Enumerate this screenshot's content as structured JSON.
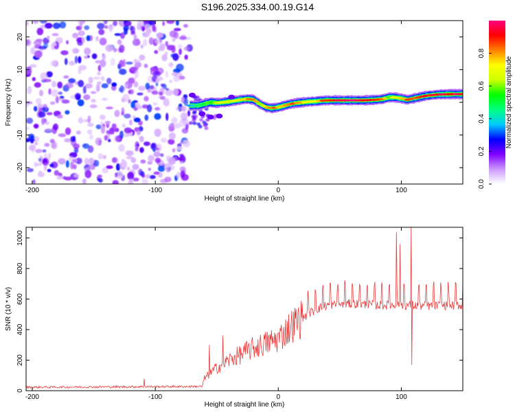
{
  "figure": {
    "title": "S196.2025.334.00.19.G14"
  },
  "chart_data": [
    {
      "type": "heatmap",
      "name": "spectrogram",
      "xlabel": "Height of straight line (km)",
      "ylabel": "Frequency (Hz)",
      "xlim": [
        -205,
        150
      ],
      "ylim": [
        -25,
        25
      ],
      "xticks": [
        -200,
        -100,
        0,
        100
      ],
      "xtick_labels": [
        "-200",
        "-100",
        "0",
        "100"
      ],
      "yticks": [
        -20,
        -10,
        0,
        10,
        20
      ],
      "ytick_labels": [
        "-20",
        "-10",
        "0",
        "10",
        "20"
      ],
      "noise_region_x": [
        -205,
        -72
      ],
      "ridge": {
        "x": [
          -72,
          -65,
          -60,
          -55,
          -50,
          -45,
          -40,
          -35,
          -30,
          -25,
          -20,
          -15,
          -10,
          -5,
          0,
          5,
          10,
          15,
          20,
          25,
          30,
          35,
          40,
          50,
          60,
          70,
          80,
          85,
          90,
          95,
          100,
          105,
          110,
          115,
          120,
          130,
          140,
          150
        ],
        "freq": [
          -1.0,
          -1.0,
          -0.5,
          0.0,
          -0.2,
          0.0,
          0.2,
          0.5,
          0.8,
          1.0,
          0.8,
          -0.5,
          -1.5,
          -1.8,
          -1.5,
          -1.0,
          -0.5,
          -0.2,
          0.0,
          0.2,
          0.3,
          0.5,
          0.6,
          0.6,
          0.6,
          0.6,
          0.8,
          1.0,
          1.5,
          1.5,
          1.2,
          0.8,
          1.2,
          1.6,
          2.0,
          2.4,
          2.5,
          2.5
        ],
        "amplitude": [
          0.35,
          0.45,
          0.5,
          0.55,
          0.6,
          0.65,
          0.7,
          0.7,
          0.75,
          0.8,
          0.85,
          0.6,
          0.8,
          0.85,
          0.8,
          0.75,
          0.85,
          0.8,
          0.75,
          0.7,
          0.7,
          0.85,
          0.9,
          0.95,
          0.95,
          0.95,
          0.9,
          0.85,
          0.6,
          0.7,
          0.75,
          0.85,
          0.8,
          0.85,
          0.9,
          0.95,
          0.95,
          0.95
        ]
      },
      "colorbar": {
        "label": "Normalized spectral amplitude",
        "range": [
          0,
          1
        ],
        "ticks": [
          0.0,
          0.2,
          0.4,
          0.6,
          0.8
        ],
        "tick_labels": [
          "0.0",
          "0.2",
          "0.4",
          "0.6",
          "0.8"
        ],
        "colors": [
          "#ffffff",
          "#cc99ff",
          "#8000ff",
          "#0000ff",
          "#00ccff",
          "#00ff80",
          "#00ff00",
          "#ccff00",
          "#ffff00",
          "#ff8000",
          "#ff0000",
          "#ff0080"
        ]
      }
    },
    {
      "type": "line",
      "name": "snr",
      "xlabel": "Height of straight line (km)",
      "ylabel": "SNR (10 * v/v)",
      "xlim": [
        -205,
        150
      ],
      "ylim": [
        0,
        1070
      ],
      "xticks": [
        -200,
        -100,
        0,
        100
      ],
      "xtick_labels": [
        "-200",
        "-100",
        "0",
        "100"
      ],
      "yticks": [
        0,
        200,
        400,
        600,
        800,
        1000
      ],
      "ytick_labels": [
        "0",
        "200",
        "400",
        "600",
        "800",
        "1000"
      ],
      "series": [
        {
          "name": "SNR",
          "color": "#e83a3a",
          "trend": {
            "x": [
              -205,
              -62,
              -60,
              -50,
              -40,
              -20,
              0,
              10,
              20,
              30,
              40,
              60,
              80,
              100,
              120,
              150
            ],
            "y": [
              20,
              25,
              80,
              150,
              200,
              280,
              340,
              420,
              480,
              530,
              560,
              570,
              560,
              560,
              555,
              560
            ]
          },
          "spikes": [
            {
              "x": -109,
              "y": 78
            },
            {
              "x": -56,
              "y": 300
            },
            {
              "x": -45,
              "y": 360
            },
            {
              "x": 96,
              "y": 1040
            },
            {
              "x": 99,
              "y": 960
            },
            {
              "x": 108,
              "y": 1080
            },
            {
              "x": 108.5,
              "y": 170
            }
          ]
        }
      ]
    }
  ]
}
